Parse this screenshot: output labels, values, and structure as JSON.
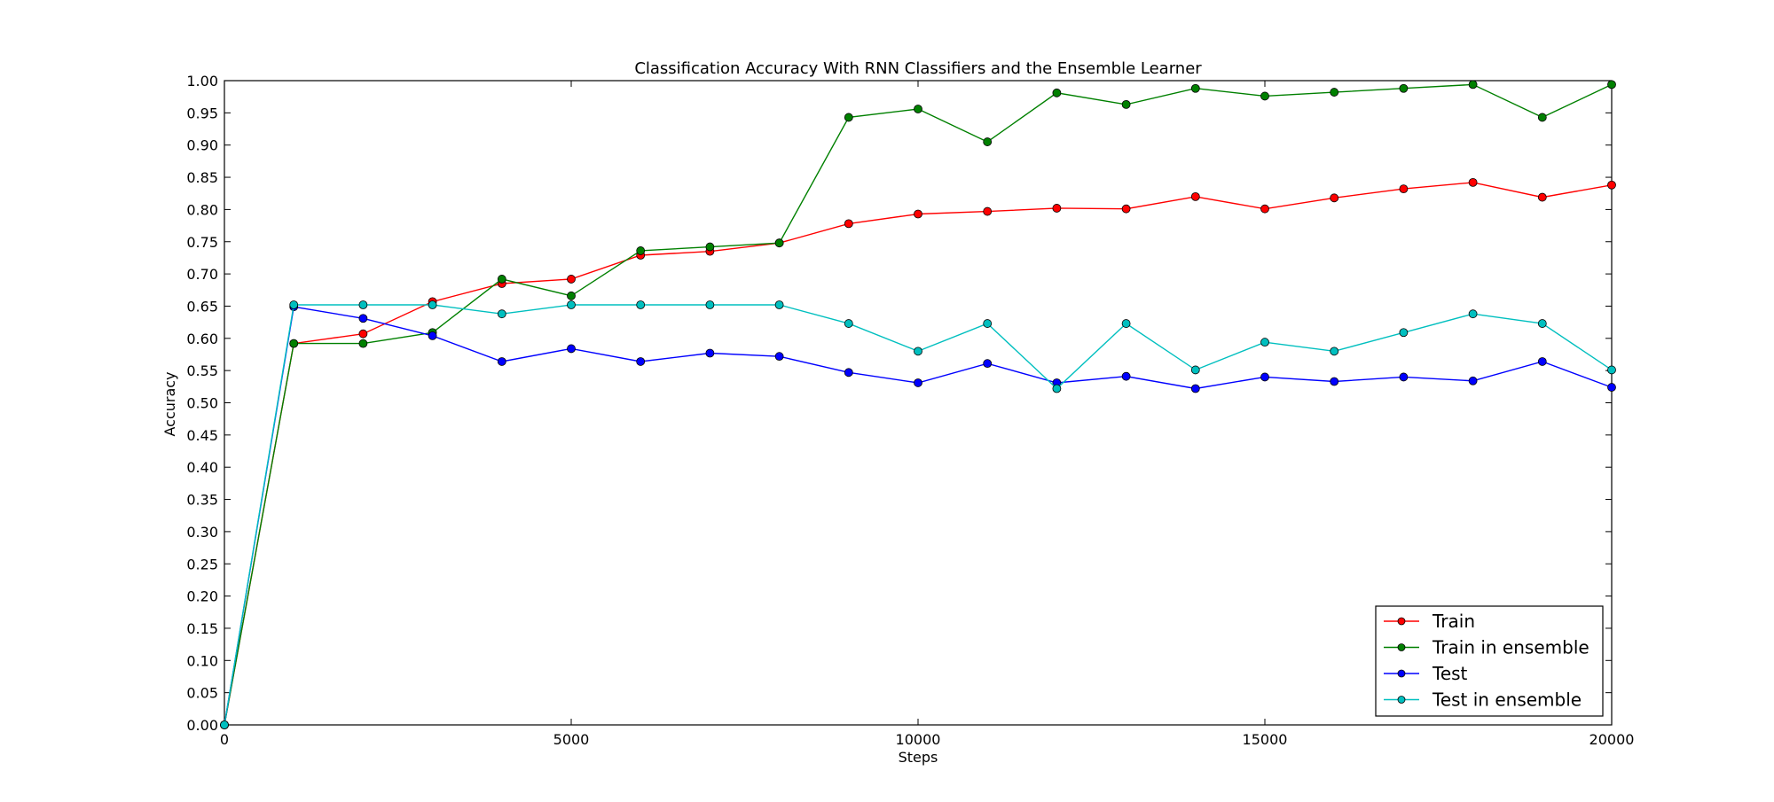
{
  "chart_data": {
    "type": "line",
    "title": "Classification Accuracy With RNN Classifiers and the Ensemble Learner",
    "xlabel": "Steps",
    "ylabel": "Accuracy",
    "xlim": [
      0,
      20000
    ],
    "ylim": [
      0,
      1.0
    ],
    "x_ticks": [
      "0",
      "5000",
      "10000",
      "15000",
      "20000"
    ],
    "y_ticks": [
      "0.00",
      "0.05",
      "0.10",
      "0.15",
      "0.20",
      "0.25",
      "0.30",
      "0.35",
      "0.40",
      "0.45",
      "0.50",
      "0.55",
      "0.60",
      "0.65",
      "0.70",
      "0.75",
      "0.80",
      "0.85",
      "0.90",
      "0.95",
      "1.00"
    ],
    "grid": false,
    "legend_position": "bottom-right",
    "x": [
      0,
      1000,
      2000,
      3000,
      4000,
      5000,
      6000,
      7000,
      8000,
      9000,
      10000,
      11000,
      12000,
      13000,
      14000,
      15000,
      16000,
      17000,
      18000,
      19000,
      20000
    ],
    "series": [
      {
        "name": "Train",
        "color": "#ff0000",
        "values": [
          0.0,
          0.592,
          0.607,
          0.657,
          0.685,
          0.692,
          0.729,
          0.735,
          0.748,
          0.778,
          0.793,
          0.797,
          0.802,
          0.801,
          0.82,
          0.801,
          0.818,
          0.832,
          0.842,
          0.819,
          0.838
        ]
      },
      {
        "name": "Train in ensemble",
        "color": "#008000",
        "values": [
          0.0,
          0.592,
          0.592,
          0.609,
          0.692,
          0.666,
          0.736,
          0.742,
          0.748,
          0.943,
          0.956,
          0.905,
          0.981,
          0.963,
          0.988,
          0.976,
          0.982,
          0.988,
          0.994,
          0.943,
          0.994
        ]
      },
      {
        "name": "Test",
        "color": "#0000ff",
        "values": [
          0.0,
          0.649,
          0.631,
          0.604,
          0.564,
          0.584,
          0.564,
          0.577,
          0.572,
          0.547,
          0.531,
          0.561,
          0.531,
          0.541,
          0.522,
          0.54,
          0.533,
          0.54,
          0.534,
          0.564,
          0.524
        ]
      },
      {
        "name": "Test in ensemble",
        "color": "#00bfbf",
        "values": [
          0.0,
          0.652,
          0.652,
          0.652,
          0.638,
          0.652,
          0.652,
          0.652,
          0.652,
          0.623,
          0.58,
          0.623,
          0.522,
          0.623,
          0.551,
          0.594,
          0.58,
          0.609,
          0.638,
          0.623,
          0.551
        ]
      }
    ]
  }
}
